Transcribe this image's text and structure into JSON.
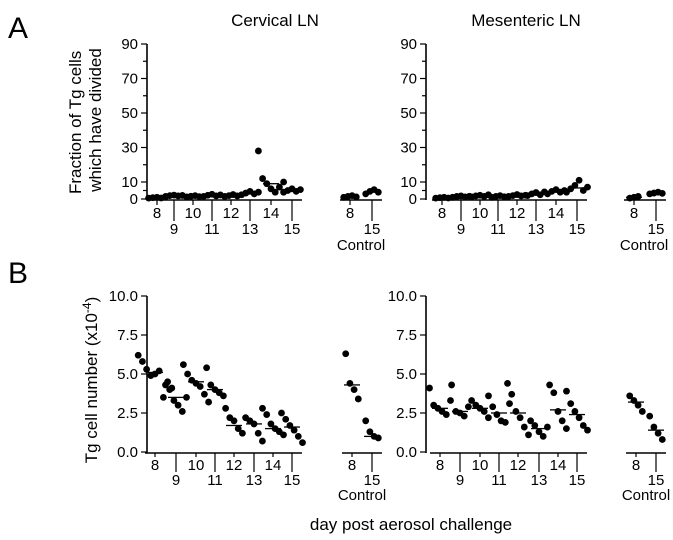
{
  "figure": {
    "panel_labels": [
      "A",
      "B"
    ],
    "xlabel": "day post aerosol challenge",
    "control_label": "Control"
  },
  "chart_data": [
    {
      "type": "scatter",
      "panel": "A",
      "title": "Cervical LN",
      "ylabel_lines": [
        "Fraction of Tg cells",
        "which have divided"
      ],
      "ylim": [
        0,
        90
      ],
      "yticks": [
        "0",
        "10",
        "30",
        "50",
        "70",
        "90"
      ],
      "categories": [
        "8",
        "9",
        "10",
        "11",
        "12",
        "13",
        "14",
        "15",
        "8",
        "15"
      ],
      "groups": [
        {
          "label": "8",
          "values": [
            0.5,
            0.8,
            1.0,
            0.6,
            1.2
          ],
          "mean": 0.8
        },
        {
          "label": "9",
          "values": [
            1.5,
            2.0,
            2.3,
            1.8,
            2.1
          ],
          "mean": 1.9
        },
        {
          "label": "10",
          "values": [
            1.2,
            1.6,
            2.0,
            1.4
          ],
          "mean": 1.5
        },
        {
          "label": "11",
          "values": [
            1.5,
            2.2,
            2.8,
            1.8,
            2.4
          ],
          "mean": 2.1
        },
        {
          "label": "12",
          "values": [
            1.5,
            2.0,
            2.6,
            1.8
          ],
          "mean": 2.0
        },
        {
          "label": "13",
          "values": [
            2.5,
            3.5,
            4.5,
            3.0,
            4.0
          ],
          "mean": 3.5
        },
        {
          "label": "14",
          "values": [
            28,
            12,
            9,
            6,
            4,
            7,
            10
          ],
          "mean": 9
        },
        {
          "label": "15",
          "values": [
            4,
            5,
            6,
            4.5,
            5.5
          ],
          "mean": 5
        },
        {
          "label": "8",
          "values": [
            1.0,
            1.5,
            2.0,
            1.2
          ],
          "mean": 1.4,
          "control": true
        },
        {
          "label": "15",
          "values": [
            3,
            4.5,
            5.5,
            4.0
          ],
          "mean": 4.2,
          "control": true
        }
      ]
    },
    {
      "type": "scatter",
      "panel": "A",
      "title": "Mesenteric LN",
      "ylim": [
        0,
        90
      ],
      "yticks": [
        "0",
        "10",
        "30",
        "50",
        "70",
        "90"
      ],
      "categories": [
        "8",
        "9",
        "10",
        "11",
        "12",
        "13",
        "14",
        "15",
        "8",
        "15"
      ],
      "groups": [
        {
          "label": "8",
          "values": [
            0.5,
            0.8,
            1.0,
            0.6
          ],
          "mean": 0.7
        },
        {
          "label": "9",
          "values": [
            1.0,
            1.5,
            1.8,
            1.2,
            1.6
          ],
          "mean": 1.4
        },
        {
          "label": "10",
          "values": [
            1.2,
            1.8,
            2.2,
            1.5,
            2.5
          ],
          "mean": 1.8
        },
        {
          "label": "11",
          "values": [
            1.0,
            1.5,
            2.0,
            1.3
          ],
          "mean": 1.5
        },
        {
          "label": "12",
          "values": [
            1.5,
            2.0,
            2.6,
            1.8,
            2.2
          ],
          "mean": 2.0
        },
        {
          "label": "13",
          "values": [
            2.0,
            3.0,
            3.8,
            2.5,
            4.2
          ],
          "mean": 3.0
        },
        {
          "label": "14",
          "values": [
            3.0,
            4.5,
            5.5,
            4.0,
            5.0
          ],
          "mean": 4.4
        },
        {
          "label": "15",
          "values": [
            4.0,
            6.0,
            8.0,
            11.0,
            5.0,
            7.0
          ],
          "mean": 6.5
        },
        {
          "label": "8",
          "values": [
            0.5,
            1.0,
            1.5
          ],
          "mean": 1.0,
          "control": true
        },
        {
          "label": "15",
          "values": [
            3.0,
            3.5,
            4.0,
            3.3
          ],
          "mean": 3.5,
          "control": true
        }
      ]
    },
    {
      "type": "scatter",
      "panel": "B",
      "title": "",
      "ylabel": "Tg cell number (x10",
      "ylabel_exp": "-4",
      "ylabel_end": ")",
      "ylim": [
        0,
        10
      ],
      "yticks": [
        "0.0",
        "2.5",
        "5.0",
        "7.5",
        "10.0"
      ],
      "categories": [
        "8",
        "9",
        "10",
        "11",
        "12",
        "13",
        "14",
        "15",
        "8",
        "15"
      ],
      "groups": [
        {
          "label": "8",
          "values": [
            6.2,
            5.8,
            5.3,
            4.9,
            5.0,
            5.2,
            3.5,
            4.5,
            4.1
          ],
          "mean": 5.1
        },
        {
          "label": "9",
          "values": [
            4.3,
            4.0,
            3.3,
            3.0,
            2.6,
            3.5
          ],
          "mean": 3.5
        },
        {
          "label": "10",
          "values": [
            5.6,
            5.0,
            4.6,
            4.4,
            4.2,
            3.7,
            3.2
          ],
          "mean": 4.5
        },
        {
          "label": "11",
          "values": [
            5.4,
            4.3,
            4.0,
            3.8,
            3.6
          ],
          "mean": 4.0
        },
        {
          "label": "12",
          "values": [
            2.8,
            2.2,
            2.0,
            1.5,
            1.2
          ],
          "mean": 1.7
        },
        {
          "label": "13",
          "values": [
            2.2,
            2.0,
            1.8,
            1.2,
            0.7
          ],
          "mean": 1.8
        },
        {
          "label": "14",
          "values": [
            2.8,
            2.4,
            1.8,
            1.5,
            1.3,
            1.1
          ],
          "mean": 1.5
        },
        {
          "label": "15",
          "values": [
            2.5,
            2.1,
            1.7,
            1.4,
            1.0,
            0.6
          ],
          "mean": 1.6
        },
        {
          "label": "8",
          "values": [
            6.3,
            4.4,
            4.0,
            3.4
          ],
          "mean": 4.3,
          "control": true
        },
        {
          "label": "15",
          "values": [
            2.0,
            1.3,
            1.0,
            0.9
          ],
          "mean": 1.0,
          "control": true
        }
      ]
    },
    {
      "type": "scatter",
      "panel": "B",
      "title": "",
      "ylim": [
        0,
        10
      ],
      "yticks": [
        "0.0",
        "2.5",
        "5.0",
        "7.5",
        "10.0"
      ],
      "categories": [
        "8",
        "9",
        "10",
        "11",
        "12",
        "13",
        "14",
        "15",
        "8",
        "15"
      ],
      "groups": [
        {
          "label": "8",
          "values": [
            4.1,
            3.0,
            2.8,
            2.6,
            2.4,
            3.3
          ],
          "mean": 2.8
        },
        {
          "label": "9",
          "values": [
            4.3,
            2.6,
            2.5,
            2.3,
            2.9
          ],
          "mean": 2.6
        },
        {
          "label": "10",
          "values": [
            3.3,
            3.0,
            2.8,
            2.6,
            2.2
          ],
          "mean": 2.8
        },
        {
          "label": "11",
          "values": [
            3.6,
            2.9,
            2.4,
            2.0,
            1.9,
            3.1
          ],
          "mean": 2.5
        },
        {
          "label": "12",
          "values": [
            4.4,
            3.7,
            2.6,
            2.2,
            1.6,
            1.1
          ],
          "mean": 2.5
        },
        {
          "label": "13",
          "values": [
            2.0,
            1.7,
            1.3,
            1.0,
            1.6
          ],
          "mean": 1.5
        },
        {
          "label": "14",
          "values": [
            4.3,
            3.8,
            2.6,
            2.0,
            1.5
          ],
          "mean": 2.7
        },
        {
          "label": "15",
          "values": [
            3.9,
            3.1,
            2.6,
            2.2,
            1.7,
            1.4
          ],
          "mean": 2.4
        },
        {
          "label": "8",
          "values": [
            3.6,
            3.3,
            3.0,
            2.6
          ],
          "mean": 3.2,
          "control": true
        },
        {
          "label": "15",
          "values": [
            2.3,
            1.6,
            1.2,
            0.8
          ],
          "mean": 1.4,
          "control": true
        }
      ]
    }
  ]
}
